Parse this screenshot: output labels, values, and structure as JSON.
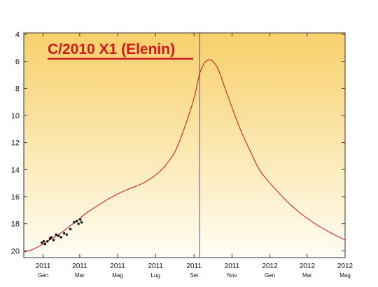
{
  "chart_data": {
    "type": "line",
    "title": "",
    "annotation": "C/2010 X1 (Elenin)",
    "xlabel": "",
    "ylabel": "",
    "y_axis_inverted": true,
    "ylim": [
      20.5,
      3.9
    ],
    "yticks": [
      4,
      6,
      8,
      10,
      12,
      14,
      16,
      18,
      20
    ],
    "xlim": [
      "2010-12-01",
      "2012-05-01"
    ],
    "xticks": [
      {
        "date": "2011-01-01",
        "year": "2011",
        "month": "Gen"
      },
      {
        "date": "2011-03-01",
        "year": "2011",
        "month": "Mar"
      },
      {
        "date": "2011-05-01",
        "year": "2011",
        "month": "Mag"
      },
      {
        "date": "2011-07-01",
        "year": "2011",
        "month": "Lug"
      },
      {
        "date": "2011-09-01",
        "year": "2011",
        "month": "Set"
      },
      {
        "date": "2011-11-01",
        "year": "2011",
        "month": "Nov"
      },
      {
        "date": "2012-01-01",
        "year": "2012",
        "month": "Gen"
      },
      {
        "date": "2012-03-01",
        "year": "2012",
        "month": "Mar"
      },
      {
        "date": "2012-05-01",
        "year": "2012",
        "month": "Mag"
      }
    ],
    "vertical_marker_date": "2011-09-10",
    "background_gradient": [
      "#f7d06a",
      "#fffdf4"
    ],
    "series": [
      {
        "kind": "predicted",
        "color": "#d01010",
        "points": [
          [
            "2010-12-01",
            20.1
          ],
          [
            "2010-12-15",
            19.9
          ],
          [
            "2011-01-01",
            19.5
          ],
          [
            "2011-01-15",
            19.1
          ],
          [
            "2011-02-01",
            18.6
          ],
          [
            "2011-02-15",
            18.1
          ],
          [
            "2011-03-01",
            17.6
          ],
          [
            "2011-03-15",
            17.1
          ],
          [
            "2011-04-01",
            16.6
          ],
          [
            "2011-04-15",
            16.2
          ],
          [
            "2011-05-01",
            15.8
          ],
          [
            "2011-05-15",
            15.5
          ],
          [
            "2011-06-01",
            15.2
          ],
          [
            "2011-06-15",
            14.9
          ],
          [
            "2011-07-01",
            14.4
          ],
          [
            "2011-07-15",
            13.8
          ],
          [
            "2011-08-01",
            12.7
          ],
          [
            "2011-08-15",
            11.1
          ],
          [
            "2011-09-01",
            8.7
          ],
          [
            "2011-09-10",
            6.9
          ],
          [
            "2011-09-18",
            6.1
          ],
          [
            "2011-09-24",
            5.9
          ],
          [
            "2011-10-01",
            6.0
          ],
          [
            "2011-10-10",
            6.6
          ],
          [
            "2011-10-20",
            7.9
          ],
          [
            "2011-11-01",
            9.4
          ],
          [
            "2011-11-15",
            11.1
          ],
          [
            "2011-12-01",
            12.7
          ],
          [
            "2011-12-15",
            14.0
          ],
          [
            "2012-01-01",
            15.0
          ],
          [
            "2012-02-01",
            16.5
          ],
          [
            "2012-03-01",
            17.6
          ],
          [
            "2012-04-01",
            18.5
          ],
          [
            "2012-05-01",
            19.2
          ]
        ]
      },
      {
        "kind": "observed",
        "color": "#000000",
        "points": [
          [
            "2010-12-30",
            19.4
          ],
          [
            "2011-01-02",
            19.3
          ],
          [
            "2011-01-04",
            19.5
          ],
          [
            "2011-01-08",
            19.3
          ],
          [
            "2011-01-12",
            19.1
          ],
          [
            "2011-01-14",
            19.0
          ],
          [
            "2011-01-18",
            19.2
          ],
          [
            "2011-01-22",
            18.8
          ],
          [
            "2011-01-26",
            18.9
          ],
          [
            "2011-01-30",
            19.0
          ],
          [
            "2011-02-04",
            18.7
          ],
          [
            "2011-02-08",
            18.8
          ],
          [
            "2011-02-14",
            18.4
          ],
          [
            "2011-02-20",
            17.9
          ],
          [
            "2011-02-24",
            17.8
          ],
          [
            "2011-02-27",
            18.0
          ],
          [
            "2011-03-02",
            17.7
          ],
          [
            "2011-03-04",
            17.9
          ]
        ]
      }
    ]
  }
}
